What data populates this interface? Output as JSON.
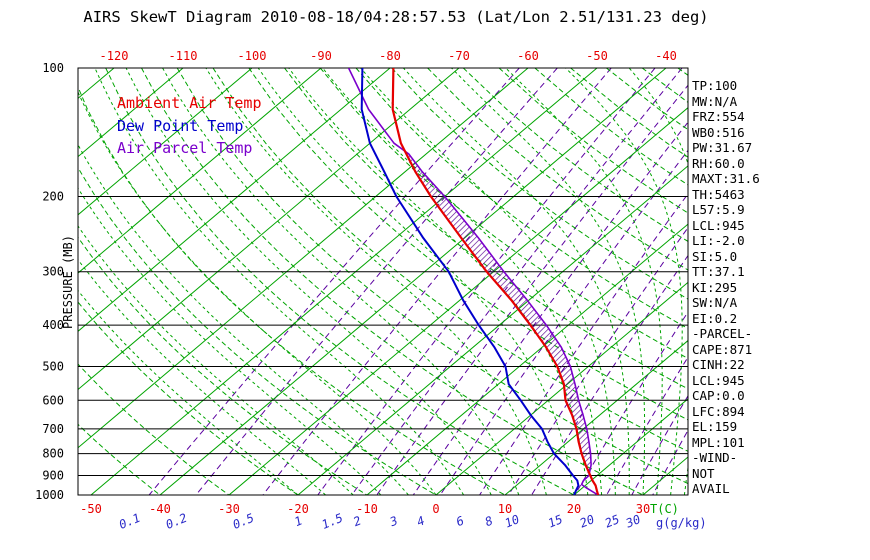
{
  "title": "AIRS SkewT Diagram 2010-08-18/04:28:57.53 (Lat/Lon 2.51/131.23 deg)",
  "colors": {
    "temp": "#e60000",
    "dew": "#0000cc",
    "parcel": "#7a00cc",
    "grid_green": "#00a400",
    "mixing": "#5a00a0",
    "mix_label_blue": "#2a2ac8",
    "hatch": "#55008f",
    "axis": "#000000"
  },
  "legend": [
    {
      "label": "Ambient Air Temp"
    },
    {
      "label": "Dew Point Temp"
    },
    {
      "label": "Air Parcel Temp"
    }
  ],
  "axes": {
    "pressure_label": "PRESSURE (MB)",
    "x_axis_label": "T(C)",
    "mixing_label": "g(g/kg)"
  },
  "panel": {
    "lines": [
      "TP:100",
      "MW:N/A",
      "FRZ:554",
      "WB0:516",
      "PW:31.67",
      "RH:60.0",
      "MAXT:31.6",
      "TH:5463",
      "L57:5.9",
      "LCL:945",
      "LI:-2.0",
      "SI:5.0",
      "TT:37.1",
      "KI:295",
      "SW:N/A",
      "EI:0.2",
      "-PARCEL-",
      "CAPE:871",
      "CINH:22",
      "LCL:945",
      "CAP:0.0",
      "LFC:894",
      "EL:159",
      "MPL:101",
      "-WIND-",
      "NOT",
      "AVAIL"
    ]
  },
  "chart_data": {
    "type": "line",
    "subtype": "skewT-logP",
    "title": "AIRS SkewT Diagram 2010-08-18/04:28:57.53 (Lat/Lon 2.51/131.23 deg)",
    "xlabel": "T(C)",
    "ylabel": "PRESSURE (MB)",
    "y_scale": "log",
    "ylim": [
      1000,
      100
    ],
    "pressure_ticks": [
      100,
      200,
      300,
      400,
      500,
      600,
      700,
      800,
      900,
      1000
    ],
    "top_ticks": [
      -120,
      -110,
      -100,
      -90,
      -80,
      -70,
      -60,
      -50,
      -40
    ],
    "bottom_ticks": [
      -50,
      -40,
      -30,
      -20,
      -10,
      0,
      10,
      20,
      30
    ],
    "mixing_ratio_ticks": [
      0.1,
      0.2,
      0.5,
      1,
      1.5,
      2,
      3,
      4,
      6,
      8,
      10,
      15,
      20,
      25,
      30
    ],
    "grid": {
      "isotherms": {
        "min": -150,
        "max": 40,
        "step": 10
      },
      "dry_adiabats": {
        "min": -40,
        "max": 180,
        "step": 10
      },
      "moist_adiabats": {
        "values": [
          -20,
          -16,
          -12,
          -8,
          -4,
          0,
          4,
          8,
          12,
          16,
          20,
          22,
          24,
          26,
          28,
          30,
          32,
          34,
          36
        ]
      },
      "mixing_ratio_lines": [
        0.1,
        0.2,
        0.5,
        1,
        1.5,
        2,
        3,
        4,
        6,
        8,
        10,
        15,
        20,
        25,
        30
      ]
    },
    "hatch_between": {
      "from": "Air Parcel Temp",
      "to": "Ambient Air Temp",
      "p_top": 159,
      "p_bottom": 894
    },
    "series": [
      {
        "name": "Ambient Air Temp",
        "color_key": "temp",
        "points": [
          {
            "p": 1000,
            "t": 23.5
          },
          {
            "p": 975,
            "t": 22.5
          },
          {
            "p": 950,
            "t": 21.5
          },
          {
            "p": 925,
            "t": 20.2
          },
          {
            "p": 900,
            "t": 19.0
          },
          {
            "p": 850,
            "t": 16.5
          },
          {
            "p": 800,
            "t": 14.0
          },
          {
            "p": 750,
            "t": 11.5
          },
          {
            "p": 700,
            "t": 9.0
          },
          {
            "p": 650,
            "t": 6.0
          },
          {
            "p": 600,
            "t": 2.5
          },
          {
            "p": 550,
            "t": -0.5
          },
          {
            "p": 500,
            "t": -4.5
          },
          {
            "p": 450,
            "t": -9.5
          },
          {
            "p": 400,
            "t": -15.5
          },
          {
            "p": 350,
            "t": -22.5
          },
          {
            "p": 300,
            "t": -31.0
          },
          {
            "p": 250,
            "t": -40.5
          },
          {
            "p": 200,
            "t": -52.0
          },
          {
            "p": 175,
            "t": -58.5
          },
          {
            "p": 150,
            "t": -65.5
          },
          {
            "p": 125,
            "t": -72.5
          },
          {
            "p": 100,
            "t": -79.5
          }
        ]
      },
      {
        "name": "Dew Point Temp",
        "color_key": "dew",
        "points": [
          {
            "p": 1000,
            "t": 20.0
          },
          {
            "p": 975,
            "t": 19.5
          },
          {
            "p": 950,
            "t": 19.0
          },
          {
            "p": 925,
            "t": 18.0
          },
          {
            "p": 900,
            "t": 16.5
          },
          {
            "p": 850,
            "t": 13.5
          },
          {
            "p": 800,
            "t": 10.0
          },
          {
            "p": 750,
            "t": 7.0
          },
          {
            "p": 700,
            "t": 4.0
          },
          {
            "p": 650,
            "t": 0.0
          },
          {
            "p": 600,
            "t": -4.0
          },
          {
            "p": 550,
            "t": -8.5
          },
          {
            "p": 500,
            "t": -12.0
          },
          {
            "p": 450,
            "t": -17.0
          },
          {
            "p": 400,
            "t": -23.0
          },
          {
            "p": 350,
            "t": -29.5
          },
          {
            "p": 300,
            "t": -36.5
          },
          {
            "p": 250,
            "t": -46.0
          },
          {
            "p": 200,
            "t": -57.0
          },
          {
            "p": 175,
            "t": -63.0
          },
          {
            "p": 150,
            "t": -70.0
          },
          {
            "p": 125,
            "t": -77.0
          },
          {
            "p": 100,
            "t": -84.0
          }
        ]
      },
      {
        "name": "Air Parcel Temp",
        "color_key": "parcel",
        "points": [
          {
            "p": 1000,
            "t": 23.5
          },
          {
            "p": 960,
            "t": 20.4
          },
          {
            "p": 945,
            "t": 19.3
          },
          {
            "p": 925,
            "t": 18.9
          },
          {
            "p": 900,
            "t": 18.8
          },
          {
            "p": 850,
            "t": 17.3
          },
          {
            "p": 800,
            "t": 15.3
          },
          {
            "p": 750,
            "t": 13.0
          },
          {
            "p": 700,
            "t": 10.5
          },
          {
            "p": 650,
            "t": 7.6
          },
          {
            "p": 600,
            "t": 4.4
          },
          {
            "p": 550,
            "t": 1.1
          },
          {
            "p": 500,
            "t": -2.6
          },
          {
            "p": 450,
            "t": -7.3
          },
          {
            "p": 400,
            "t": -13.2
          },
          {
            "p": 350,
            "t": -20.2
          },
          {
            "p": 300,
            "t": -28.5
          },
          {
            "p": 250,
            "t": -38.0
          },
          {
            "p": 200,
            "t": -50.0
          },
          {
            "p": 175,
            "t": -57.5
          },
          {
            "p": 159,
            "t": -62.5
          },
          {
            "p": 150,
            "t": -66.5
          },
          {
            "p": 125,
            "t": -76.0
          },
          {
            "p": 100,
            "t": -86.0
          }
        ]
      }
    ]
  }
}
